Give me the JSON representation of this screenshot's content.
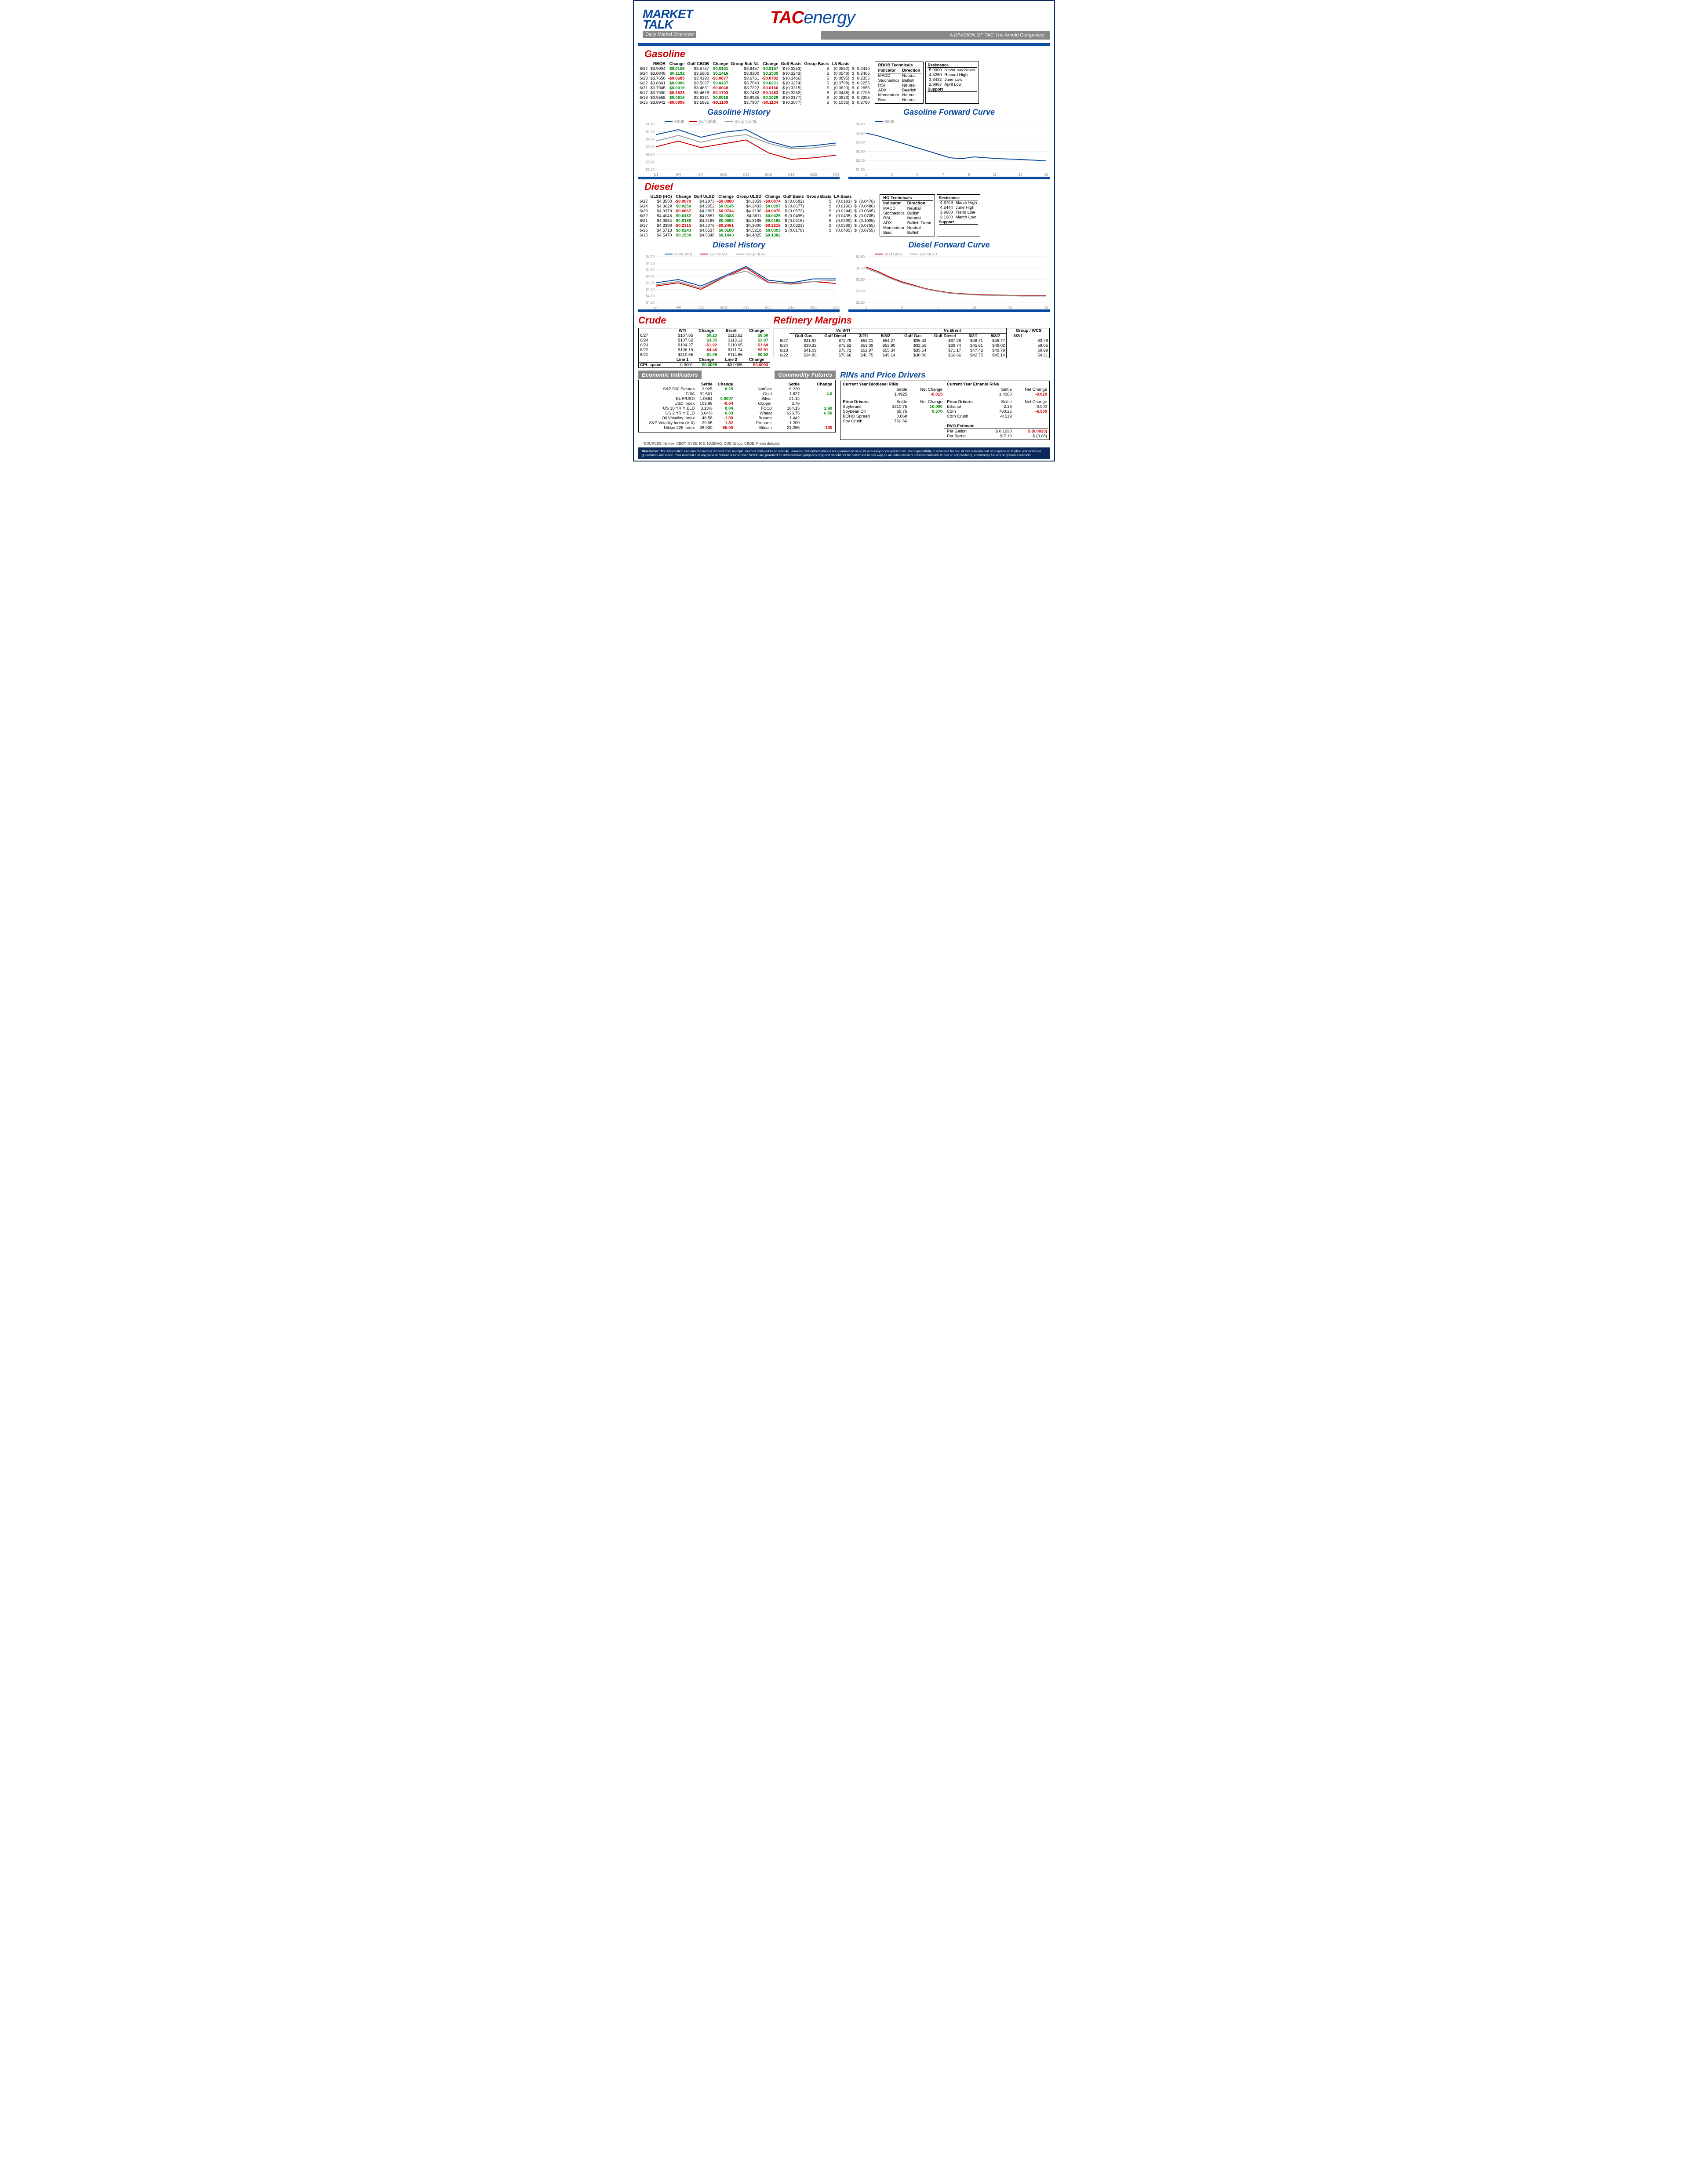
{
  "header": {
    "market_talk_1": "MARKET",
    "market_talk_2": "TALK",
    "subtitle": "Daily Market Overview",
    "tac": "TAC",
    "energy": "energy",
    "division": "A DIVISION OF TAC The Arnold Companies"
  },
  "gasoline": {
    "title": "Gasoline",
    "headers": [
      "",
      "RBOB",
      "Change",
      "Gulf CBOB",
      "Change",
      "Group Sub NL",
      "Change",
      "Gulf Basis",
      "Group Basis",
      "LA Basis"
    ],
    "rows": [
      {
        "d": "6/27",
        "v": [
          "$3.9004",
          "$0.0156",
          "$3.5757",
          "$0.0151",
          "$3.8457",
          "$0.0157",
          "$ (0.3253)",
          "$",
          "(0.0550)",
          "$",
          "0.2410"
        ]
      },
      {
        "d": "6/24",
        "v": [
          "$3.8848",
          "$0.1192",
          "$3.5606",
          "$0.1416",
          "$3.8300",
          "$0.1539",
          "$ (0.3243)",
          "$",
          "(0.0548)",
          "$",
          "0.2405"
        ]
      },
      {
        "d": "6/23",
        "v": [
          "$3.7656",
          "-$0.0685",
          "$3.4190",
          "-$0.0877",
          "$3.6761",
          "-$0.0782",
          "$ (0.3466)",
          "$",
          "(0.0895)",
          "$",
          "0.2355"
        ]
      },
      {
        "d": "6/22",
        "v": [
          "$3.8341",
          "$0.0396",
          "$3.5067",
          "$0.0437",
          "$3.7543",
          "$0.0221",
          "$ (0.3274)",
          "$",
          "(0.0798)",
          "$",
          "0.2255"
        ]
      },
      {
        "d": "6/21",
        "v": [
          "$3.7945",
          "$0.0015",
          "$3.4631",
          "-$0.0048",
          "$3.7322",
          "-$0.0160",
          "$ (0.3315)",
          "$",
          "(0.0623)",
          "$",
          "0.2655"
        ]
      },
      {
        "d": "6/17",
        "v": [
          "$3.7930",
          "-$0.1628",
          "$3.4678",
          "-$0.1703",
          "$3.7482",
          "-$0.1453",
          "$ (0.3252)",
          "$",
          "(0.0448)",
          "$",
          "0.2705"
        ]
      },
      {
        "d": "6/16",
        "v": [
          "$3.9558",
          "$0.0616",
          "$3.6381",
          "$0.0516",
          "$3.8935",
          "$0.1029",
          "$ (0.3177)",
          "$",
          "(0.0623)",
          "$",
          "0.2255"
        ]
      },
      {
        "d": "6/15",
        "v": [
          "$3.8942",
          "-$0.0996",
          "$3.5865",
          "-$0.1109",
          "$3.7907",
          "-$0.1134",
          "$ (0.3077)",
          "$",
          "(0.1036)",
          "$",
          "0.2760"
        ]
      }
    ],
    "tech_title": "RBOB Technicals",
    "tech_rows": [
      [
        "Indicator",
        "Direction"
      ],
      [
        "MACD",
        "Neutral"
      ],
      [
        "Stochastics",
        "Bullish"
      ],
      [
        "RSI",
        "Neutral"
      ],
      [
        "ADX",
        "Bearish"
      ],
      [
        "Momentum",
        "Neutral"
      ],
      [
        "Bias:",
        "Neutral"
      ]
    ],
    "res_title": "Resistance",
    "res_rows": [
      [
        "5.0000",
        "Never say Never"
      ],
      [
        "4.3260",
        "Record High"
      ],
      [
        "3.6432",
        "June Low"
      ],
      [
        "2.9867",
        "April Low"
      ]
    ],
    "sup_title": "Support",
    "history_title": "Gasoline History",
    "history_chart": {
      "x_labels": [
        "6/1",
        "6/4",
        "6/7",
        "6/10",
        "6/13",
        "6/16",
        "6/19",
        "6/22",
        "6/25"
      ],
      "y_labels": [
        "$3.20",
        "$3.40",
        "$3.60",
        "$3.80",
        "$4.00",
        "$4.20",
        "$4.40"
      ],
      "y_min": 3.2,
      "y_max": 4.4,
      "series": [
        {
          "name": "RBOB",
          "color": "#0a4a9c",
          "pts": [
            4.12,
            4.25,
            4.05,
            4.18,
            4.25,
            3.95,
            3.79,
            3.83,
            3.9
          ]
        },
        {
          "name": "Gulf CBOB",
          "color": "#c00",
          "pts": [
            3.8,
            3.95,
            3.78,
            3.88,
            3.98,
            3.64,
            3.47,
            3.51,
            3.58
          ]
        },
        {
          "name": "Group Sub NL",
          "color": "#999",
          "pts": [
            3.95,
            4.1,
            3.92,
            4.05,
            4.12,
            3.89,
            3.75,
            3.77,
            3.85
          ]
        }
      ]
    },
    "forward_title": "Gasoline Forward Curve",
    "forward_chart": {
      "x_labels": [
        "1",
        "3",
        "5",
        "7",
        "9",
        "11",
        "13",
        "15"
      ],
      "y_labels": [
        "$1.90",
        "$2.40",
        "$2.90",
        "$3.40",
        "$3.90",
        "$4.40"
      ],
      "y_min": 1.9,
      "y_max": 4.4,
      "series": [
        {
          "name": "RBOB",
          "color": "#0a4a9c",
          "pts": [
            3.9,
            3.75,
            3.55,
            3.35,
            3.15,
            2.95,
            2.75,
            2.55,
            2.5,
            2.6,
            2.55,
            2.5,
            2.48,
            2.45,
            2.42,
            2.38
          ]
        }
      ]
    }
  },
  "diesel": {
    "title": "Diesel",
    "headers": [
      "",
      "ULSD (HO)",
      "Change",
      "Gulf ULSD",
      "Change",
      "Group ULSD",
      "Change",
      "Gulf Basis",
      "Group Basis",
      "LA Basis"
    ],
    "rows": [
      {
        "d": "6/27",
        "v": [
          "$4.3550",
          "-$0.0079",
          "$4.2873",
          "-$0.0080",
          "$4.3359",
          "-$0.0074",
          "$ (0.0682)",
          "$",
          "(0.0193)",
          "$",
          "(0.0476)"
        ]
      },
      {
        "d": "6/24",
        "v": [
          "$4.3629",
          "$0.0250",
          "$4.2952",
          "$0.0145",
          "$4.3433",
          "$0.0297",
          "$ (0.0677)",
          "$",
          "(0.0196)",
          "$",
          "(0.0486)"
        ]
      },
      {
        "d": "6/23",
        "v": [
          "$4.3379",
          "-$0.0667",
          "$4.2807",
          "-$0.0744",
          "$4.3136",
          "-$0.0476",
          "$ (0.0572)",
          "$",
          "(0.0244)",
          "$",
          "(0.0605)"
        ]
      },
      {
        "d": "6/22",
        "v": [
          "$4.4046",
          "$0.0462",
          "$4.3551",
          "$0.0383",
          "$4.3611",
          "$0.0426",
          "$ (0.0495)",
          "$",
          "(0.0435)",
          "$",
          "(0.0705)"
        ]
      },
      {
        "d": "6/21",
        "v": [
          "$4.3584",
          "$0.0186",
          "$4.3168",
          "$0.0092",
          "$4.3185",
          "$0.0185",
          "$ (0.0416)",
          "$",
          "(0.0399)",
          "$",
          "(0.1005)"
        ]
      },
      {
        "d": "6/17",
        "v": [
          "$4.3398",
          "-$0.2315",
          "$4.3076",
          "-$0.2461",
          "$4.3000",
          "-$0.2218",
          "$ (0.0323)",
          "$",
          "(0.0398)",
          "$",
          "(0.0755)"
        ]
      },
      {
        "d": "6/16",
        "v": [
          "$4.5713",
          "$0.0243",
          "$4.5537",
          "$0.0188",
          "$4.5218",
          "$0.0393",
          "$ (0.0176)",
          "$",
          "(0.0495)",
          "$",
          "(0.0755)"
        ]
      },
      {
        "d": "6/15",
        "v": [
          "$4.5470",
          "$0.1530",
          "$4.5348",
          "$0.1443",
          "$4.4825",
          "$0.1382",
          "",
          "",
          "",
          "",
          ""
        ]
      }
    ],
    "tech_title": "HO Technicals",
    "tech_rows": [
      [
        "Indicator",
        "Direction"
      ],
      [
        "MACD",
        "Neutral"
      ],
      [
        "Stochastics",
        "Bullish"
      ],
      [
        "RSI",
        "Neutral"
      ],
      [
        "ADX",
        "Bullish Trend"
      ],
      [
        "Momentum",
        "Neutral"
      ],
      [
        "Bias:",
        "Bullish"
      ]
    ],
    "res_title": "Resistance",
    "res_rows": [
      [
        "4.6709",
        "March High"
      ],
      [
        "4.6444",
        "June High"
      ],
      [
        "3.9600",
        "Trend Line"
      ],
      [
        "3.1600",
        "March Low"
      ]
    ],
    "sup_title": "Support",
    "history_title": "Diesel History",
    "history_chart": {
      "x_labels": [
        "6/7",
        "6/9",
        "6/11",
        "6/13",
        "6/15",
        "6/17",
        "6/19",
        "6/21",
        "6/23"
      ],
      "y_labels": [
        "$4.00",
        "$4.10",
        "$4.20",
        "$4.30",
        "$4.40",
        "$4.50",
        "$4.60",
        "$4.70"
      ],
      "y_min": 4.0,
      "y_max": 4.7,
      "series": [
        {
          "name": "ULSD (HO)",
          "color": "#0a4a9c",
          "pts": [
            4.3,
            4.35,
            4.25,
            4.4,
            4.55,
            4.34,
            4.3,
            4.36,
            4.36
          ]
        },
        {
          "name": "Gulf ULSD",
          "color": "#c00",
          "pts": [
            4.25,
            4.3,
            4.2,
            4.38,
            4.53,
            4.31,
            4.28,
            4.32,
            4.29
          ]
        },
        {
          "name": "Group ULSD",
          "color": "#999",
          "pts": [
            4.27,
            4.32,
            4.22,
            4.39,
            4.48,
            4.3,
            4.29,
            4.32,
            4.34
          ]
        }
      ]
    },
    "forward_title": "Diesel Forward Curve",
    "forward_chart": {
      "x_labels": [
        "1",
        "4",
        "7",
        "10",
        "13",
        "16"
      ],
      "y_labels": [
        "$2.80",
        "$3.30",
        "$3.80",
        "$4.30",
        "$4.80"
      ],
      "y_min": 2.8,
      "y_max": 4.8,
      "series": [
        {
          "name": "ULSD (HO)",
          "color": "#c00",
          "pts": [
            4.35,
            4.15,
            3.9,
            3.7,
            3.55,
            3.4,
            3.3,
            3.22,
            3.18,
            3.15,
            3.13,
            3.12,
            3.11,
            3.1,
            3.1,
            3.1
          ]
        },
        {
          "name": "Gulf ULSD",
          "color": "#999",
          "pts": [
            4.29,
            4.1,
            3.86,
            3.66,
            3.52,
            3.38,
            3.28,
            3.2,
            3.16,
            3.13,
            3.11,
            3.1,
            3.09,
            3.08,
            3.08,
            3.08
          ]
        }
      ]
    }
  },
  "crude": {
    "title": "Crude",
    "headers": [
      "",
      "WTI",
      "Change",
      "Brent",
      "Change"
    ],
    "rows": [
      {
        "d": "6/27",
        "v": [
          "$107.85",
          "$0.23",
          "$113.62",
          "$0.50"
        ]
      },
      {
        "d": "6/24",
        "v": [
          "$107.62",
          "$3.35",
          "$113.12",
          "$3.07"
        ]
      },
      {
        "d": "6/23",
        "v": [
          "$104.27",
          "-$1.92",
          "$110.05",
          "-$1.69"
        ]
      },
      {
        "d": "6/22",
        "v": [
          "$106.19",
          "-$4.46",
          "$111.74",
          "-$2.91"
        ]
      },
      {
        "d": "6/21",
        "v": [
          "$110.65",
          "$1.09",
          "$114.65",
          "$0.52"
        ]
      }
    ],
    "cpl_row": {
      "label": "CPL space",
      "line1": "Line 1",
      "v1": "-0.0001",
      "ch1": "Change",
      "c1": "$0.0099",
      "line2": "Line 2",
      "v2": "-$0.0085",
      "ch2": "Change",
      "c2": "-$0.0003"
    }
  },
  "refinery": {
    "title": "Refinery Margins",
    "sub1": "Vs WTI",
    "sub2": "Vs Brent",
    "headers": [
      "",
      "Gulf Gas",
      "Gulf Diesel",
      "3/2/1",
      "5/3/2",
      "Gulf Gas",
      "Gulf Diesel",
      "3/2/1",
      "5/3/2",
      "Group / WCS",
      "3/2/1"
    ],
    "rows": [
      [
        "6/27",
        "$41.92",
        "$72.78",
        "$52.21",
        "$54.27",
        "$36.42",
        "$67.28",
        "$46.71",
        "$48.77",
        "",
        "63.78"
      ],
      [
        "6/24",
        "$39.33",
        "$75.52",
        "$51.39",
        "$53.80",
        "$33.55",
        "$69.74",
        "$45.61",
        "$48.02",
        "",
        "59.05"
      ],
      [
        "6/23",
        "$41.09",
        "$76.72",
        "$52.97",
        "$55.34",
        "$35.54",
        "$71.17",
        "$47.42",
        "$49.79",
        "",
        "59.99"
      ],
      [
        "6/22",
        "$34.80",
        "$70.66",
        "$46.75",
        "$49.14",
        "$30.80",
        "$66.66",
        "$42.75",
        "$45.14",
        "",
        "54.31"
      ]
    ]
  },
  "econ": {
    "title": "Economic Indicators",
    "headers": [
      "",
      "Settle",
      "Change"
    ],
    "rows": [
      [
        "S&P 500 Futures",
        "3,925",
        "8.25",
        "pos"
      ],
      [
        "DJIA",
        "31,501",
        "",
        ""
      ],
      [
        "EUR/USD",
        "1.0564",
        "0.0007",
        "pos"
      ],
      [
        "USD Index",
        "103.96",
        "-0.04",
        "neg"
      ],
      [
        "US 10 YR YIELD",
        "3.13%",
        "0.04",
        "pos"
      ],
      [
        "US 2 YR YIELD",
        "3.04%",
        "0.03",
        "pos"
      ],
      [
        "Oil Volatility Index",
        "48.58",
        "-1.59",
        "neg"
      ],
      [
        "S&P Volatiliy Index (VIX)",
        "29.05",
        "-1.82",
        "neg"
      ],
      [
        "Nikkei 225 Index",
        "26,930",
        "-55.00",
        "neg"
      ]
    ]
  },
  "comm": {
    "title": "Commodity Futures",
    "headers": [
      "",
      "Settle",
      "Change"
    ],
    "rows": [
      [
        "NatGas",
        "6.220",
        "",
        ""
      ],
      [
        "Gold",
        "1,827",
        "4.0",
        "pos"
      ],
      [
        "Silver",
        "21.12",
        "",
        ""
      ],
      [
        "Copper",
        "3.76",
        "",
        ""
      ],
      [
        "FCOJ",
        "164.15",
        "2.60",
        "pos"
      ],
      [
        "Wheat",
        "923.75",
        "6.50",
        "pos"
      ],
      [
        "Butane",
        "1.442",
        "",
        ""
      ],
      [
        "Propane",
        "1.209",
        "",
        ""
      ],
      [
        "Bitcoin",
        "21,255",
        "-100",
        "neg"
      ]
    ]
  },
  "rins": {
    "title": "RINs and Price Drivers",
    "bio_title": "Current Year Biodiesel RINs",
    "eth_title": "Current Year Ethanol RINs",
    "bio": {
      "settle": "1.4925",
      "chg": "-0.015",
      "chg_cls": "neg"
    },
    "eth": {
      "settle": "1.4000",
      "chg": "-0.020",
      "chg_cls": "neg"
    },
    "pd1_title": "Price Drivers",
    "pd1": [
      [
        "Soybeans",
        "1610.75",
        "10.000",
        "pos"
      ],
      [
        "Soybean Oil",
        "69.75",
        "0.570",
        "pos"
      ],
      [
        "BOHO Spread",
        "0.868",
        "",
        ""
      ],
      [
        "Soy Crush",
        "760.66",
        "",
        ""
      ]
    ],
    "pd2_title": "Price Drivers",
    "pd2": [
      [
        "Ethanol",
        "2.16",
        "0.000",
        ""
      ],
      [
        "Corn",
        "750.25",
        "-6.500",
        "neg"
      ],
      [
        "Corn Crush",
        "-0.519",
        "",
        ""
      ]
    ],
    "rvo_title": "RVO Estimate",
    "rvo": [
      [
        "Per Gallon",
        "$",
        "0.1690",
        "$",
        "(0.0020)",
        "neg"
      ],
      [
        "Per Barrel",
        "$",
        "7.10",
        "$",
        "(0.08)",
        ""
      ]
    ]
  },
  "sources": "*SOURCES: Nymex, CBOT, NYSE, ICE, NASDAQ, CME Group, CBOE.   Prices delayed.",
  "disclaimer_label": "Disclaimer:",
  "disclaimer": "The information contained herein is derived from multiple sources believed to be reliable. However, this information is not guaranteed as to its accuracy or completeness. No responsibility is assumed for use of this material and no express or implied warranties or guarantees are made. This material and any view or comment expressed herein are provided for informational purposes only and should not be construed in any way as an inducement or recommendation to buy or sell products, commodity futures or options contracts."
}
